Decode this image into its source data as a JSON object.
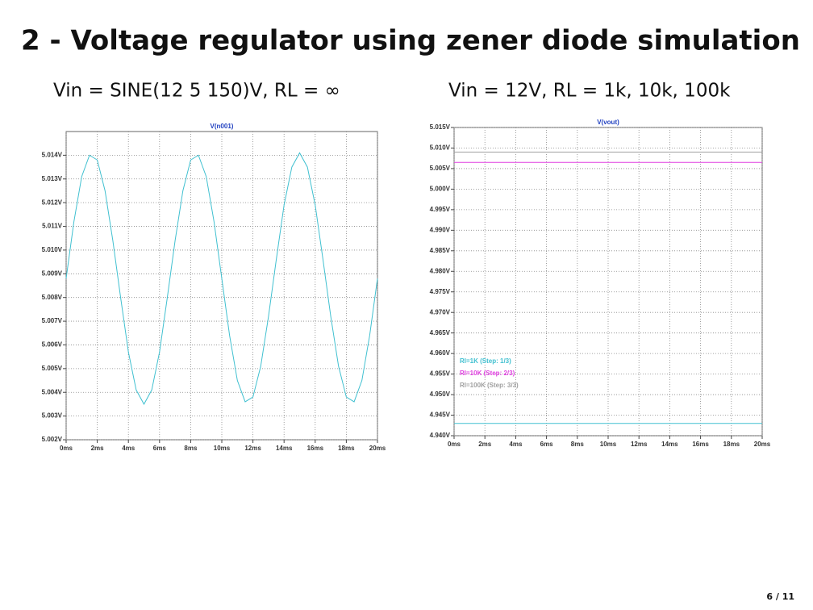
{
  "title": "2 - Voltage regulator using zener diode simulation",
  "page": "6 / 11",
  "chart_data": [
    {
      "type": "line",
      "caption": "Vin = SINE(12 5 150)V, RL = ∞",
      "title": "V(n001)",
      "x": [
        0,
        0.5,
        1,
        1.5,
        2,
        2.5,
        3,
        3.5,
        4,
        4.5,
        5,
        5.5,
        6,
        6.5,
        7,
        7.5,
        8,
        8.5,
        9,
        9.5,
        10,
        10.5,
        11,
        11.5,
        12,
        12.5,
        13,
        13.5,
        14,
        14.5,
        15,
        15.5,
        16,
        16.5,
        17,
        17.5,
        18,
        18.5,
        19,
        19.5,
        20
      ],
      "series": [
        {
          "color": "#40c0d0",
          "values": [
            5.0088,
            5.0112,
            5.0131,
            5.014,
            5.0138,
            5.0125,
            5.0104,
            5.008,
            5.0057,
            5.0041,
            5.0035,
            5.0041,
            5.0057,
            5.008,
            5.0104,
            5.0125,
            5.0138,
            5.014,
            5.0131,
            5.0112,
            5.0088,
            5.0064,
            5.0045,
            5.0036,
            5.0038,
            5.0051,
            5.0072,
            5.0096,
            5.0119,
            5.0135,
            5.0141,
            5.0135,
            5.0119,
            5.0096,
            5.0072,
            5.0051,
            5.0038,
            5.0036,
            5.0045,
            5.0064,
            5.0088
          ]
        }
      ],
      "xlim": [
        0,
        20
      ],
      "xticks": [
        {
          "value": 0,
          "label": "0ms"
        },
        {
          "value": 2,
          "label": "2ms"
        },
        {
          "value": 4,
          "label": "4ms"
        },
        {
          "value": 6,
          "label": "6ms"
        },
        {
          "value": 8,
          "label": "8ms"
        },
        {
          "value": 10,
          "label": "10ms"
        },
        {
          "value": 12,
          "label": "12ms"
        },
        {
          "value": 14,
          "label": "14ms"
        },
        {
          "value": 16,
          "label": "16ms"
        },
        {
          "value": 18,
          "label": "18ms"
        },
        {
          "value": 20,
          "label": "20ms"
        }
      ],
      "ylim": [
        5.002,
        5.015
      ],
      "yticks": [
        {
          "value": 5.002,
          "label": "5.002V"
        },
        {
          "value": 5.003,
          "label": "5.003V"
        },
        {
          "value": 5.004,
          "label": "5.004V"
        },
        {
          "value": 5.005,
          "label": "5.005V"
        },
        {
          "value": 5.006,
          "label": "5.006V"
        },
        {
          "value": 5.007,
          "label": "5.007V"
        },
        {
          "value": 5.008,
          "label": "5.008V"
        },
        {
          "value": 5.009,
          "label": "5.009V"
        },
        {
          "value": 5.01,
          "label": "5.010V"
        },
        {
          "value": 5.011,
          "label": "5.011V"
        },
        {
          "value": 5.012,
          "label": "5.012V"
        },
        {
          "value": 5.013,
          "label": "5.013V"
        },
        {
          "value": 5.014,
          "label": "5.014V"
        }
      ],
      "grid": true
    },
    {
      "type": "line",
      "caption": "Vin = 12V, RL = 1k, 10k, 100k",
      "title": "V(vout)",
      "x": [
        0,
        20
      ],
      "series": [
        {
          "name": "Rl=1K  (Step: 1/3)",
          "color": "#40c0d0",
          "values": [
            4.943,
            4.943
          ]
        },
        {
          "name": "Rl=10K  (Step: 2/3)",
          "color": "#e040e0",
          "values": [
            5.0065,
            5.0065
          ]
        },
        {
          "name": "Rl=100K  (Step: 3/3)",
          "color": "#a0a0a0",
          "values": [
            5.009,
            5.009
          ]
        }
      ],
      "xlim": [
        0,
        20
      ],
      "xticks": [
        {
          "value": 0,
          "label": "0ms"
        },
        {
          "value": 2,
          "label": "2ms"
        },
        {
          "value": 4,
          "label": "4ms"
        },
        {
          "value": 6,
          "label": "6ms"
        },
        {
          "value": 8,
          "label": "8ms"
        },
        {
          "value": 10,
          "label": "10ms"
        },
        {
          "value": 12,
          "label": "12ms"
        },
        {
          "value": 14,
          "label": "14ms"
        },
        {
          "value": 16,
          "label": "16ms"
        },
        {
          "value": 18,
          "label": "18ms"
        },
        {
          "value": 20,
          "label": "20ms"
        }
      ],
      "ylim": [
        4.94,
        5.015
      ],
      "yticks": [
        {
          "value": 4.94,
          "label": "4.940V"
        },
        {
          "value": 4.945,
          "label": "4.945V"
        },
        {
          "value": 4.95,
          "label": "4.950V"
        },
        {
          "value": 4.955,
          "label": "4.955V"
        },
        {
          "value": 4.96,
          "label": "4.960V"
        },
        {
          "value": 4.965,
          "label": "4.965V"
        },
        {
          "value": 4.97,
          "label": "4.970V"
        },
        {
          "value": 4.975,
          "label": "4.975V"
        },
        {
          "value": 4.98,
          "label": "4.980V"
        },
        {
          "value": 4.985,
          "label": "4.985V"
        },
        {
          "value": 4.99,
          "label": "4.990V"
        },
        {
          "value": 4.995,
          "label": "4.995V"
        },
        {
          "value": 5.0,
          "label": "5.000V"
        },
        {
          "value": 5.005,
          "label": "5.005V"
        },
        {
          "value": 5.01,
          "label": "5.010V"
        },
        {
          "value": 5.015,
          "label": "5.015V"
        }
      ],
      "grid": true,
      "legend": "lower left"
    }
  ]
}
